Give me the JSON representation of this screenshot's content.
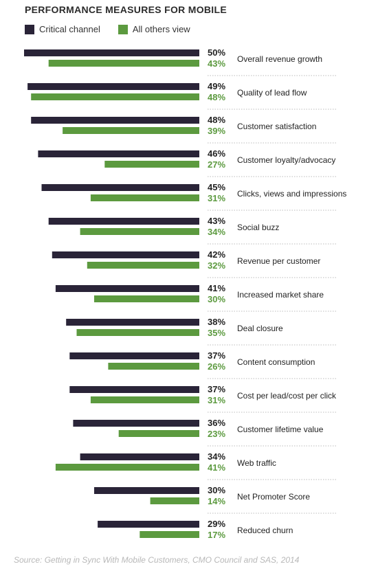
{
  "chart_data": {
    "type": "bar",
    "title": "PERFORMANCE MEASURES FOR MOBILE",
    "categories": [
      "Overall revenue growth",
      "Quality of lead flow",
      "Customer satisfaction",
      "Customer loyalty/advocacy",
      "Clicks, views and impressions",
      "Social buzz",
      "Revenue per customer",
      "Increased market share",
      "Deal closure",
      "Content consumption",
      "Cost per lead/cost per click",
      "Customer lifetime value",
      "Web traffic",
      "Net Promoter Score",
      "Reduced churn"
    ],
    "series": [
      {
        "name": "Critical channel",
        "color": "#2a2438",
        "values": [
          50,
          49,
          48,
          46,
          45,
          43,
          42,
          41,
          38,
          37,
          37,
          36,
          34,
          30,
          29
        ],
        "labels": [
          "50%",
          "49%",
          "48%",
          "46%",
          "45%",
          "43%",
          "42%",
          "41%",
          "38%",
          "37%",
          "37%",
          "36%",
          "34%",
          "30%",
          "29%"
        ]
      },
      {
        "name": "All others view",
        "color": "#5c9a3f",
        "values": [
          43,
          48,
          39,
          27,
          31,
          34,
          32,
          30,
          35,
          26,
          31,
          23,
          41,
          14,
          17
        ],
        "labels": [
          "43%",
          "48%",
          "39%",
          "27%",
          "31%",
          "34%",
          "32%",
          "30%",
          "35%",
          "26%",
          "31%",
          "23%",
          "41%",
          "14%",
          "17%"
        ]
      }
    ],
    "orientation": "horizontal, bars extend leftward",
    "grid": false,
    "legend_position": "top-left",
    "source": "Source: Getting in Sync With Mobile Customers, CMO Council and SAS, 2014"
  }
}
